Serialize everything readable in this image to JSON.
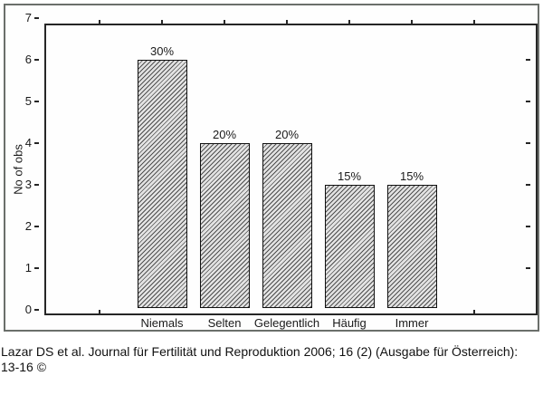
{
  "chart_data": {
    "type": "bar",
    "categories": [
      "Niemals",
      "Selten",
      "Gelegentlich",
      "Häufig",
      "Immer"
    ],
    "values": [
      6,
      4,
      4,
      3,
      3
    ],
    "bar_labels": [
      "30%",
      "20%",
      "20%",
      "15%",
      "15%"
    ],
    "title": "",
    "xlabel": "",
    "ylabel": "No of obs",
    "ylim": [
      0,
      7
    ],
    "yticks": [
      0,
      1,
      2,
      3,
      4,
      5,
      6,
      7
    ],
    "grid": false,
    "legend": false,
    "bar_style": "diagonal-hatch",
    "bar_border_color": "#111111",
    "hatch_light_color": "#e3e3e3",
    "hatch_dark_color": "#4f4f4f"
  },
  "caption": "Lazar DS et al. Journal für Fertilität und Reproduktion 2006; 16 (2) (Ausgabe für Österreich): 13-16 ©",
  "colors": {
    "frame_border": "#6b6f6b",
    "axis": "#262626",
    "text": "#1a1a1a",
    "background": "#ffffff"
  }
}
